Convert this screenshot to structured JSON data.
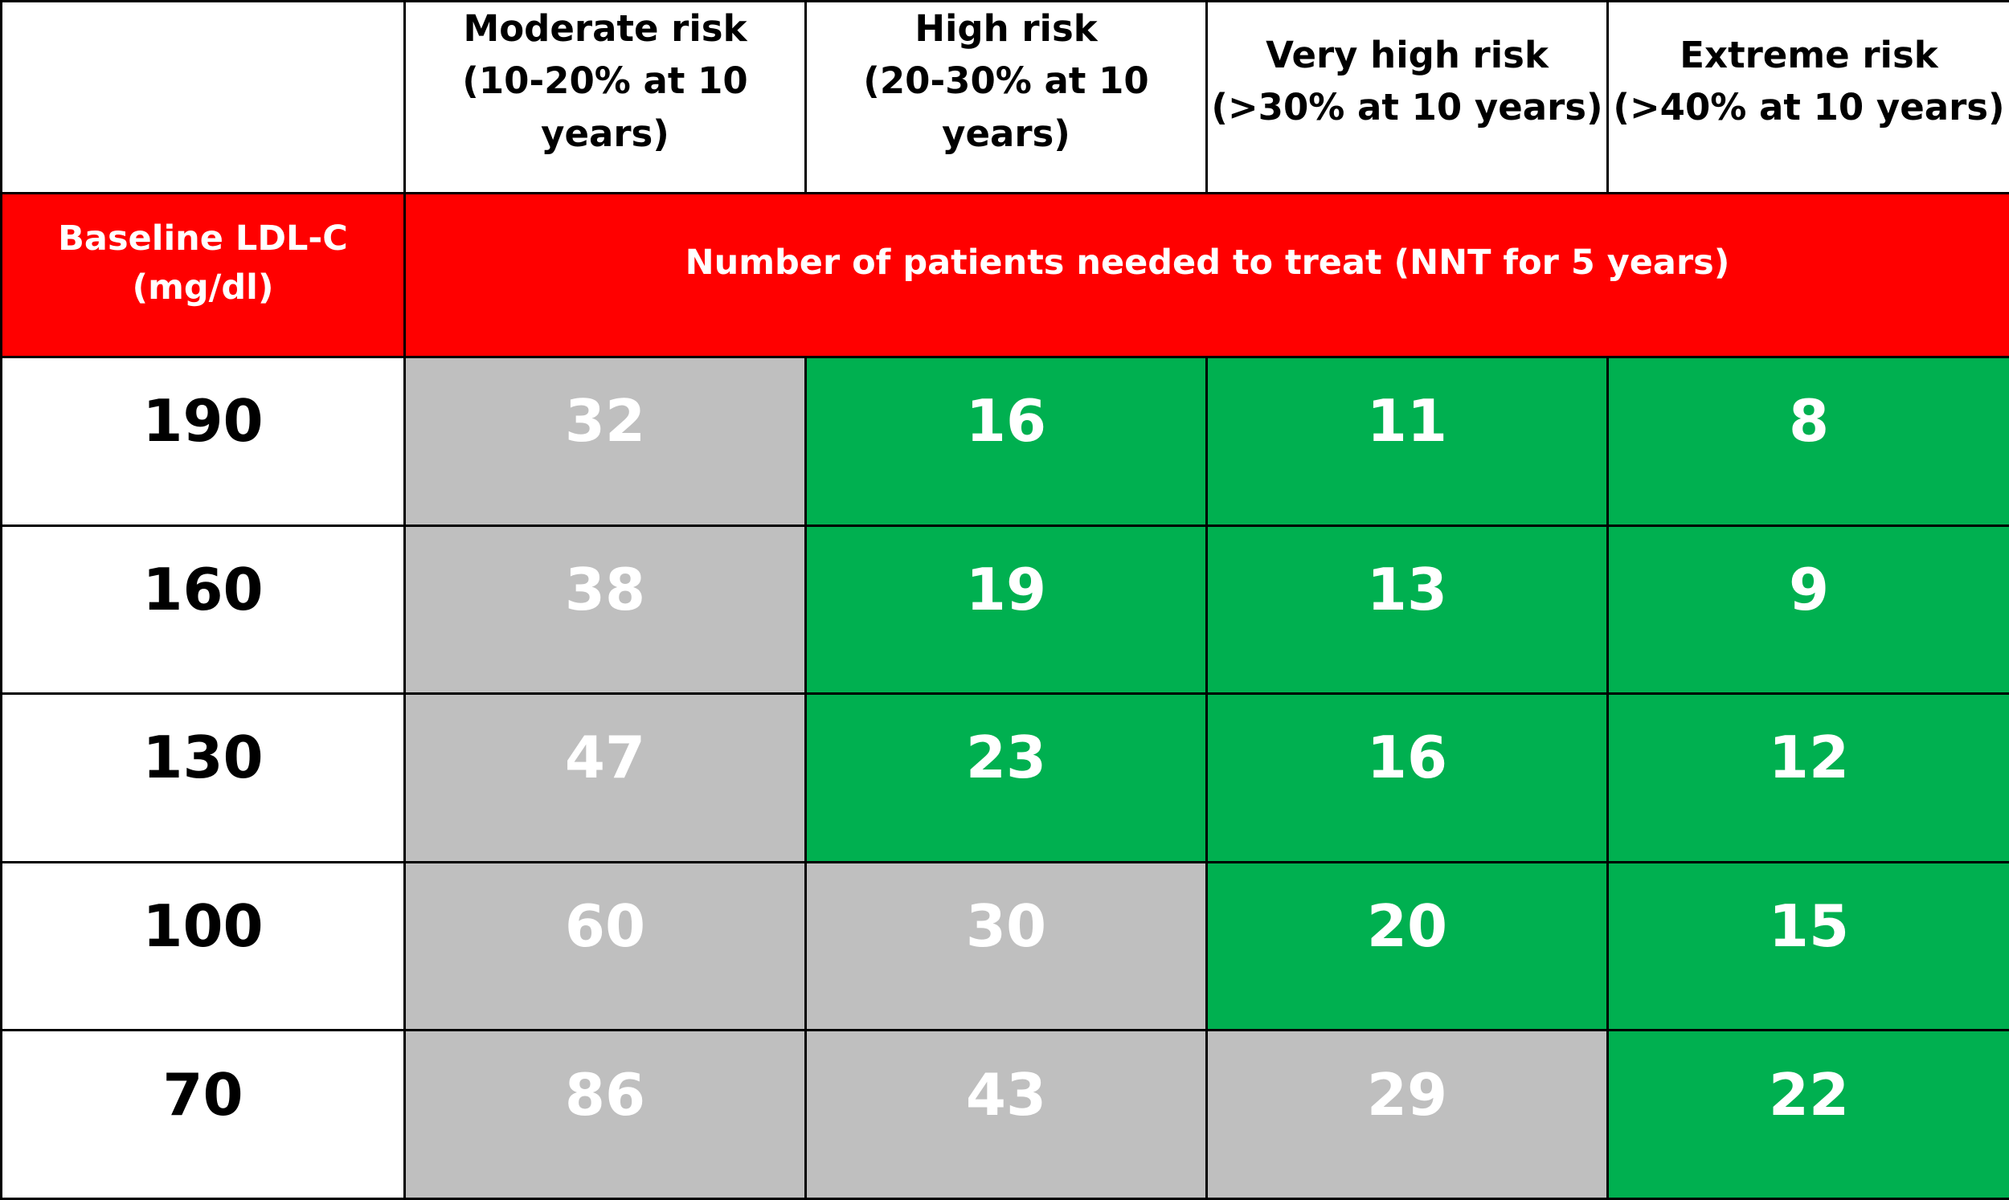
{
  "table": {
    "columns": [
      {
        "title": "Moderate risk",
        "subtitle": "(10-20% at 10 years)"
      },
      {
        "title": "High risk",
        "subtitle": "(20-30% at 10 years)"
      },
      {
        "title": "Very high risk",
        "subtitle": "(>30% at 10 years)"
      },
      {
        "title": "Extreme risk",
        "subtitle": "(>40% at 10 years)"
      }
    ],
    "row_header": [
      "Baseline LDL-C",
      "(mg/dl)"
    ],
    "span_header": "Number of patients needed to treat (NNT for 5 years)",
    "rows": [
      {
        "ldl": 190,
        "cells": [
          32,
          16,
          11,
          8
        ],
        "colors": [
          "#bfbfbf",
          "#00b050",
          "#00b050",
          "#00b050"
        ]
      },
      {
        "ldl": 160,
        "cells": [
          38,
          19,
          13,
          9
        ],
        "colors": [
          "#bfbfbf",
          "#00b050",
          "#00b050",
          "#00b050"
        ]
      },
      {
        "ldl": 130,
        "cells": [
          47,
          23,
          16,
          12
        ],
        "colors": [
          "#bfbfbf",
          "#00b050",
          "#00b050",
          "#00b050"
        ]
      },
      {
        "ldl": 100,
        "cells": [
          60,
          30,
          20,
          15
        ],
        "colors": [
          "#bfbfbf",
          "#bfbfbf",
          "#00b050",
          "#00b050"
        ]
      },
      {
        "ldl": 70,
        "cells": [
          86,
          43,
          29,
          22
        ],
        "colors": [
          "#bfbfbf",
          "#bfbfbf",
          "#bfbfbf",
          "#00b050"
        ]
      }
    ]
  }
}
